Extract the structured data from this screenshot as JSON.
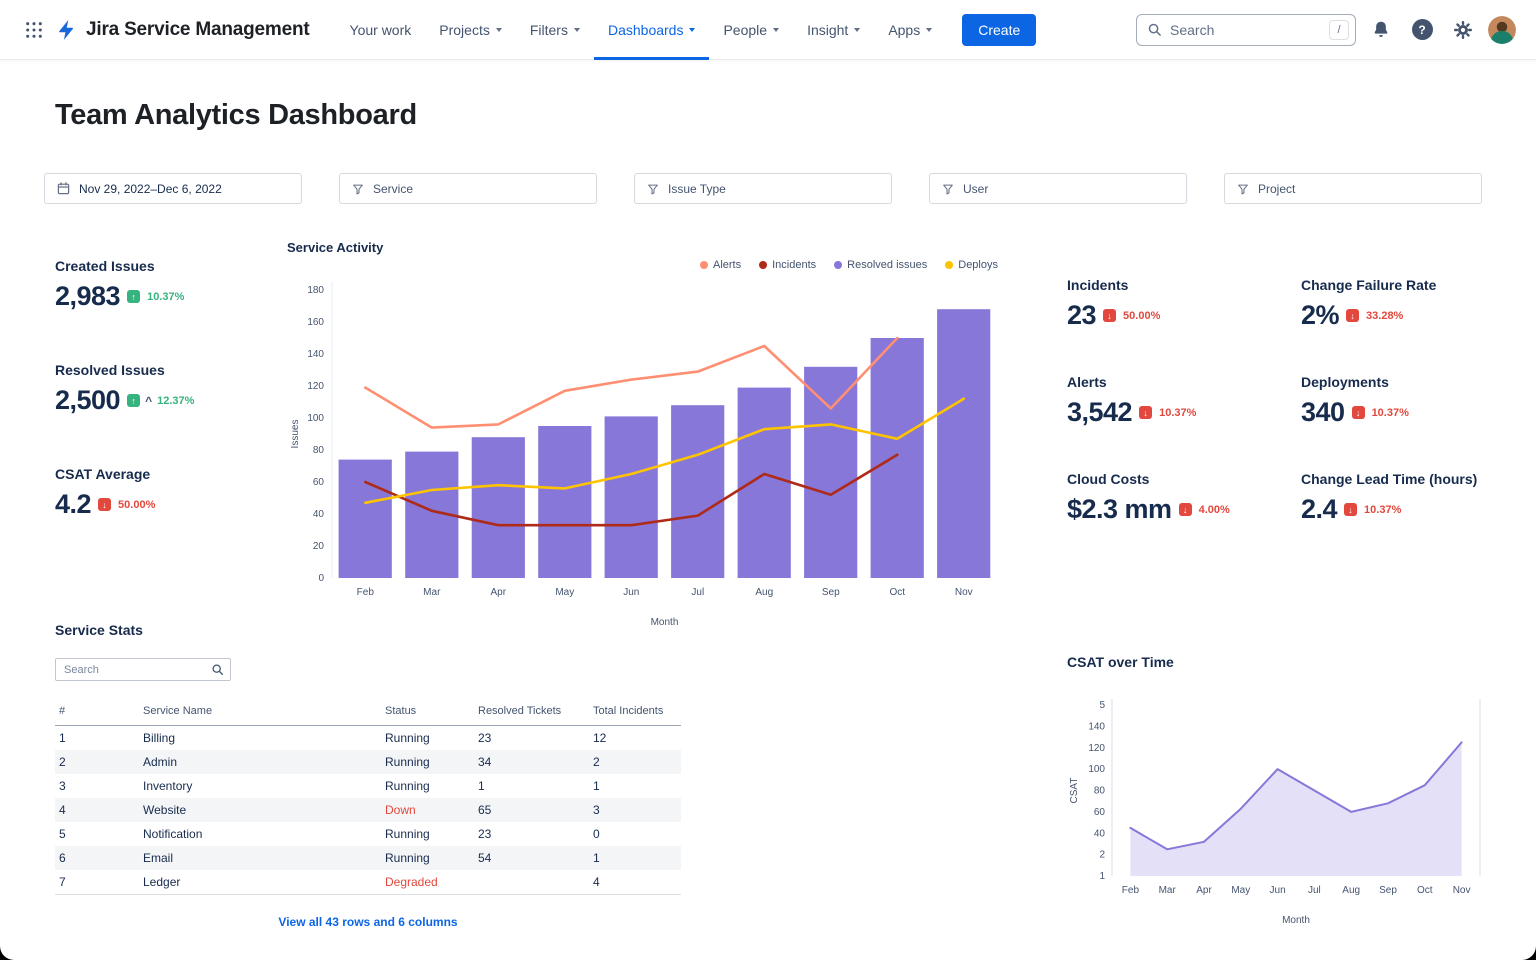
{
  "nav": {
    "brand": "Jira Service Management",
    "items": [
      {
        "label": "Your work",
        "dropdown": false,
        "active": false
      },
      {
        "label": "Projects",
        "dropdown": true,
        "active": false
      },
      {
        "label": "Filters",
        "dropdown": true,
        "active": false
      },
      {
        "label": "Dashboards",
        "dropdown": true,
        "active": true
      },
      {
        "label": "People",
        "dropdown": true,
        "active": false
      },
      {
        "label": "Insight",
        "dropdown": true,
        "active": false
      },
      {
        "label": "Apps",
        "dropdown": true,
        "active": false
      }
    ],
    "create_button": "Create",
    "search_placeholder": "Search",
    "search_shortcut": "/"
  },
  "page": {
    "title": "Team Analytics Dashboard"
  },
  "filters": [
    {
      "label": "Nov 29, 2022–Dec 6, 2022",
      "icon": "calendar"
    },
    {
      "label": "Service",
      "icon": "filter"
    },
    {
      "label": "Issue Type",
      "icon": "filter"
    },
    {
      "label": "User",
      "icon": "filter"
    },
    {
      "label": "Project",
      "icon": "filter"
    }
  ],
  "kpis": {
    "left": [
      {
        "label": "Created Issues",
        "value": "2,983",
        "trend": "up",
        "color": "green",
        "percent": "10.37%"
      },
      {
        "label": "Resolved Issues",
        "value": "2,500",
        "trend": "up",
        "color": "green",
        "percent": "12.37%",
        "caret": true
      },
      {
        "label": "CSAT Average",
        "value": "4.2",
        "trend": "down",
        "color": "red",
        "percent": "50.00%"
      }
    ],
    "right": [
      {
        "label": "Incidents",
        "value": "23",
        "trend": "down",
        "color": "red",
        "percent": "50.00%"
      },
      {
        "label": "Change Failure Rate",
        "value": "2%",
        "trend": "down",
        "color": "red",
        "percent": "33.28%"
      },
      {
        "label": "Alerts",
        "value": "3,542",
        "trend": "down",
        "color": "red",
        "percent": "10.37%"
      },
      {
        "label": "Deployments",
        "value": "340",
        "trend": "down",
        "color": "red",
        "percent": "10.37%"
      },
      {
        "label": "Cloud Costs",
        "value": "$2.3 mm",
        "trend": "down",
        "color": "red",
        "percent": "4.00%"
      },
      {
        "label": "Change Lead Time (hours)",
        "value": "2.4",
        "trend": "down",
        "color": "red",
        "percent": "10.37%"
      }
    ]
  },
  "service_stats": {
    "title": "Service Stats",
    "search_placeholder": "Search",
    "columns": [
      "#",
      "Service Name",
      "Status",
      "Resolved Tickets",
      "Total Incidents"
    ],
    "rows": [
      {
        "num": "1",
        "name": "Billing",
        "status": "Running",
        "alert": false,
        "resolved": "23",
        "incidents": "12"
      },
      {
        "num": "2",
        "name": "Admin",
        "status": "Running",
        "alert": false,
        "resolved": "34",
        "incidents": "2"
      },
      {
        "num": "3",
        "name": "Inventory",
        "status": "Running",
        "alert": false,
        "resolved": "1",
        "incidents": "1"
      },
      {
        "num": "4",
        "name": "Website",
        "status": "Down",
        "alert": true,
        "resolved": "65",
        "incidents": "3"
      },
      {
        "num": "5",
        "name": "Notification",
        "status": "Running",
        "alert": false,
        "resolved": "23",
        "incidents": "0"
      },
      {
        "num": "6",
        "name": "Email",
        "status": "Running",
        "alert": false,
        "resolved": "54",
        "incidents": "1"
      },
      {
        "num": "7",
        "name": "Ledger",
        "status": "Degraded",
        "alert": true,
        "resolved": "",
        "incidents": "4"
      }
    ],
    "footer_link": "View all 43 rows and 6 columns"
  },
  "chart_data": [
    {
      "type": "bar",
      "title": "Service Activity",
      "xlabel": "Month",
      "ylabel": "Issues",
      "categories": [
        "Feb",
        "Mar",
        "Apr",
        "May",
        "Jun",
        "Jul",
        "Aug",
        "Sep",
        "Oct",
        "Nov"
      ],
      "ylim": [
        0,
        180
      ],
      "yticks": [
        0,
        20,
        40,
        60,
        80,
        100,
        120,
        140,
        160,
        180
      ],
      "grid": false,
      "legend_position": "top-right",
      "series": [
        {
          "name": "Alerts",
          "type": "line",
          "color": "#FF8F73",
          "values": [
            119,
            94,
            96,
            117,
            124,
            129,
            145,
            106,
            150,
            null
          ]
        },
        {
          "name": "Incidents",
          "type": "line",
          "color": "#AE2A19",
          "values": [
            60,
            42,
            33,
            33,
            33,
            39,
            65,
            52,
            77,
            null
          ]
        },
        {
          "name": "Resolved issues",
          "type": "bar",
          "color": "#8777D9",
          "values": [
            74,
            79,
            88,
            95,
            101,
            108,
            119,
            132,
            150,
            168
          ]
        },
        {
          "name": "Deploys",
          "type": "line",
          "color": "#FFC400",
          "values": [
            47,
            55,
            58,
            56,
            65,
            77,
            93,
            96,
            87,
            112
          ]
        }
      ]
    },
    {
      "type": "area",
      "title": "CSAT over Time",
      "xlabel": "Month",
      "ylabel": "CSAT",
      "categories": [
        "Feb",
        "Mar",
        "Apr",
        "May",
        "Jun",
        "Jul",
        "Aug",
        "Sep",
        "Oct",
        "Nov"
      ],
      "ylim": [
        0,
        160
      ],
      "ytick_labels": [
        "5",
        "140",
        "120",
        "100",
        "80",
        "60",
        "40",
        "2",
        "1"
      ],
      "grid": false,
      "color": "#8777D9",
      "fill": "#E4E0F8",
      "values": [
        45,
        25,
        32,
        63,
        100,
        80,
        60,
        68,
        85,
        125
      ]
    }
  ],
  "colors": {
    "accent_blue": "#0C66E4",
    "trend_green": "#36B37E",
    "trend_red": "#E2483D",
    "bar_purple": "#8777D9",
    "line_salmon": "#FF8F73",
    "line_dark_red": "#AE2A19",
    "line_yellow": "#FFC400",
    "status_alert_red": "#E2483D"
  }
}
